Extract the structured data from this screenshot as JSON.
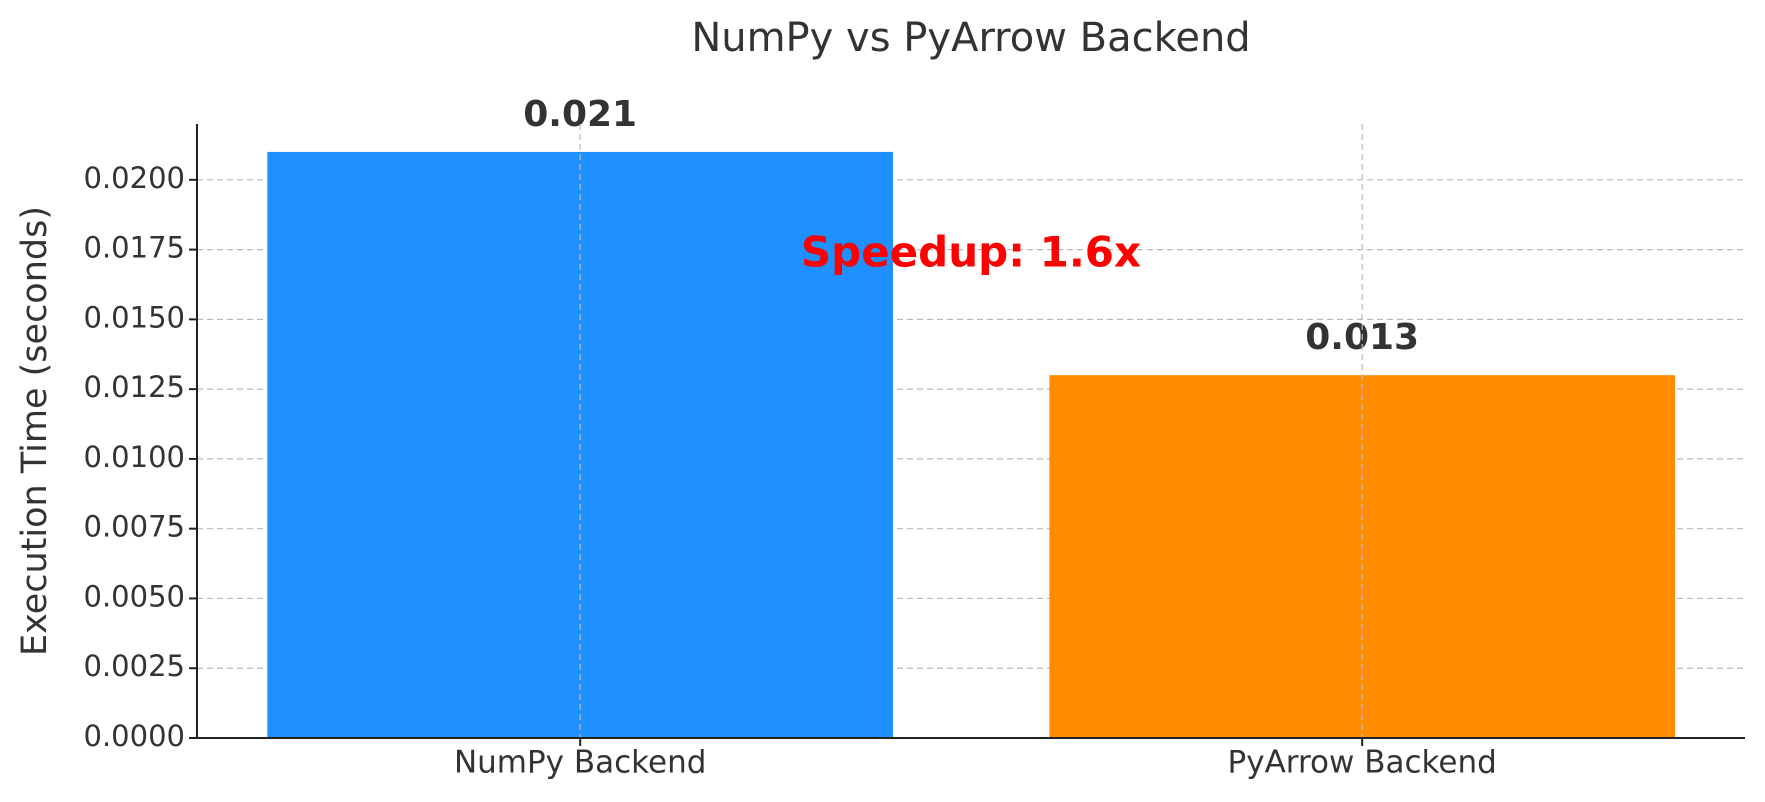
{
  "chart_data": {
    "type": "bar",
    "title": "NumPy vs PyArrow Backend",
    "y_label": "Execution Time (seconds)",
    "categories": [
      "NumPy Backend",
      "PyArrow Backend"
    ],
    "values": [
      0.021,
      0.013
    ],
    "colors": [
      "#1e90ff",
      "#ff8c00"
    ],
    "annotation": "Speedup: 1.6x",
    "annotation_color": "#ff0000",
    "ylim": [
      0,
      0.022
    ],
    "yticks": [
      {
        "value": 0,
        "label": "0.0000"
      },
      {
        "value": 0.0025,
        "label": "0.0025"
      },
      {
        "value": 0.005,
        "label": "0.0050"
      },
      {
        "value": 0.0075,
        "label": "0.0075"
      },
      {
        "value": 0.01,
        "label": "0.0100"
      },
      {
        "value": 0.0125,
        "label": "0.0125"
      },
      {
        "value": 0.015,
        "label": "0.0150"
      },
      {
        "value": 0.0175,
        "label": "0.0175"
      },
      {
        "value": 0.02,
        "label": "0.0200"
      }
    ],
    "grid": true
  }
}
